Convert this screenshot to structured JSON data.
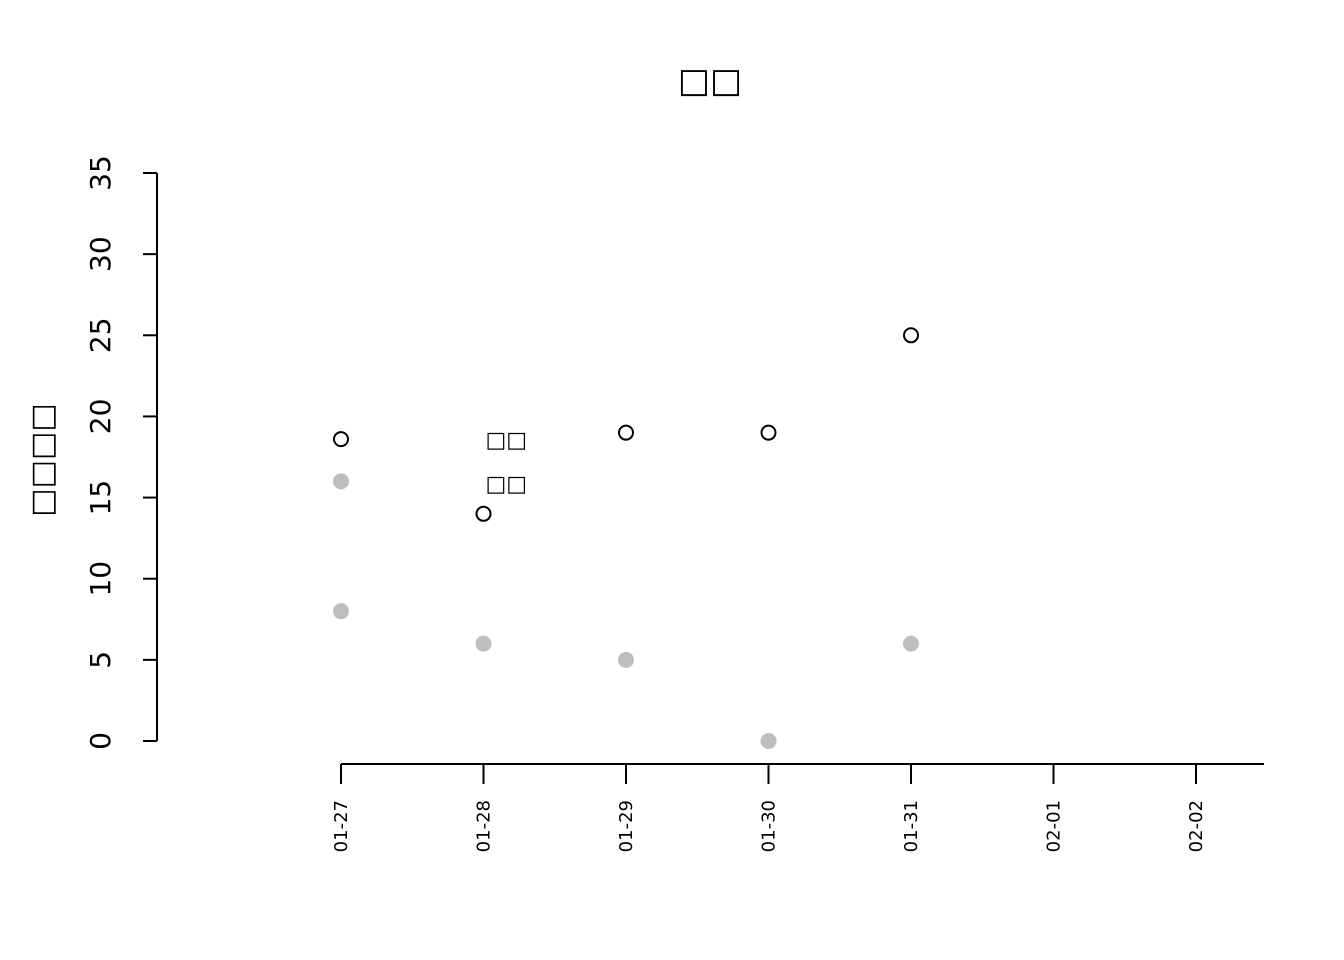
{
  "chart_data": {
    "type": "scatter",
    "title": "□□",
    "xlabel": "",
    "ylabel": "□□□□",
    "x_categories": [
      "01-27",
      "01-28",
      "01-29",
      "01-30",
      "01-31",
      "02-01",
      "02-02"
    ],
    "ylim": [
      0,
      35
    ],
    "yticks": [
      0,
      5,
      10,
      15,
      20,
      25,
      30,
      35
    ],
    "series": [
      {
        "name": "series-open",
        "marker": "open-circle",
        "color": "#000000",
        "points": [
          {
            "x": "01-27",
            "y": 18.6
          },
          {
            "x": "01-28",
            "y": 14
          },
          {
            "x": "01-29",
            "y": 19
          },
          {
            "x": "01-30",
            "y": 19
          },
          {
            "x": "01-31",
            "y": 25
          }
        ]
      },
      {
        "name": "series-filled",
        "marker": "filled-circle",
        "color": "#bebebe",
        "points": [
          {
            "x": "01-27",
            "y": 16
          },
          {
            "x": "01-27",
            "y": 8
          },
          {
            "x": "01-28",
            "y": 6
          },
          {
            "x": "01-29",
            "y": 5
          },
          {
            "x": "01-30",
            "y": 0
          },
          {
            "x": "01-31",
            "y": 6
          }
        ]
      }
    ],
    "annotations": [
      {
        "text": "□□",
        "x": "01-28",
        "y": 18.6
      },
      {
        "text": "□□",
        "x": "01-28",
        "y": 15.9
      }
    ]
  }
}
